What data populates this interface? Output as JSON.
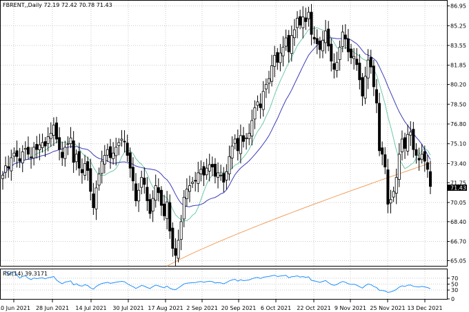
{
  "header": {
    "symbol_info": "FBRENT,,Daily  72.19 72.42 70.78 71.43"
  },
  "chart_data": [
    {
      "type": "candlestick",
      "panel": "price",
      "ylim": [
        64.6,
        87.4
      ],
      "y_ticks": [
        "86.95",
        "85.25",
        "83.55",
        "81.85",
        "80.20",
        "78.50",
        "76.80",
        "75.10",
        "73.40",
        "71.75",
        "70.05",
        "68.40",
        "66.70",
        "65.05"
      ],
      "x_ticks": [
        "10 Jun 2021",
        "28 Jun 2021",
        "14 Jul 2021",
        "30 Jul 2021",
        "17 Aug 2021",
        "2 Sep 2021",
        "20 Sep 2021",
        "6 Oct 2021",
        "22 Oct 2021",
        "9 Nov 2021",
        "25 Nov 2021",
        "13 Dec 2021"
      ],
      "last_price": "71.43",
      "colors": {
        "up": "#ffffff",
        "down": "#000000",
        "ma_fast": "#6fc9a6",
        "ma_slow": "#3a3ab8",
        "ma_long": "#f0a060"
      },
      "closes": [
        72.4,
        73.2,
        73.0,
        73.9,
        74.3,
        74.0,
        73.6,
        74.4,
        74.7,
        74.2,
        73.9,
        74.8,
        74.6,
        75.0,
        75.2,
        74.9,
        75.7,
        76.0,
        76.7,
        75.5,
        74.6,
        73.9,
        74.8,
        75.1,
        75.6,
        73.5,
        74.2,
        73.0,
        72.6,
        73.4,
        72.8,
        71.0,
        69.6,
        71.3,
        72.5,
        73.6,
        74.1,
        74.6,
        73.9,
        74.3,
        74.8,
        75.2,
        75.5,
        75.3,
        74.1,
        73.0,
        71.9,
        70.2,
        71.1,
        72.2,
        71.6,
        70.2,
        69.1,
        70.4,
        71.5,
        70.9,
        69.8,
        68.9,
        70.1,
        67.6,
        66.1,
        65.5,
        66.8,
        68.4,
        70.5,
        71.2,
        71.5,
        71.8,
        71.9,
        72.6,
        72.9,
        72.4,
        73.0,
        73.3,
        73.1,
        72.3,
        72.6,
        72.4,
        71.8,
        72.7,
        74.0,
        74.9,
        75.5,
        74.5,
        75.8,
        75.3,
        75.6,
        76.0,
        77.1,
        78.2,
        78.7,
        78.2,
        79.6,
        80.2,
        80.7,
        81.8,
        82.7,
        82.1,
        82.9,
        83.4,
        84.2,
        83.0,
        84.4,
        84.9,
        85.9,
        85.3,
        86.0,
        85.6,
        86.4,
        84.5,
        84.1,
        83.7,
        83.2,
        84.0,
        84.8,
        83.5,
        82.2,
        81.5,
        82.1,
        83.4,
        84.7,
        84.1,
        83.0,
        82.5,
        82.6,
        81.9,
        80.6,
        79.2,
        80.9,
        82.3,
        81.7,
        80.0,
        78.6,
        74.5,
        74.2,
        73.1,
        69.9,
        70.3,
        71.0,
        72.2,
        74.2,
        75.5,
        74.7,
        75.9,
        76.1,
        74.6,
        74.1,
        73.7,
        74.2,
        73.6,
        72.9,
        71.43
      ]
    },
    {
      "type": "line",
      "panel": "rsi",
      "label": "RSI(14) 39.3171",
      "ylim": [
        0,
        100
      ],
      "y_ticks": [
        "70",
        "50",
        "30",
        "0"
      ],
      "color": "#1e90ff"
    }
  ]
}
